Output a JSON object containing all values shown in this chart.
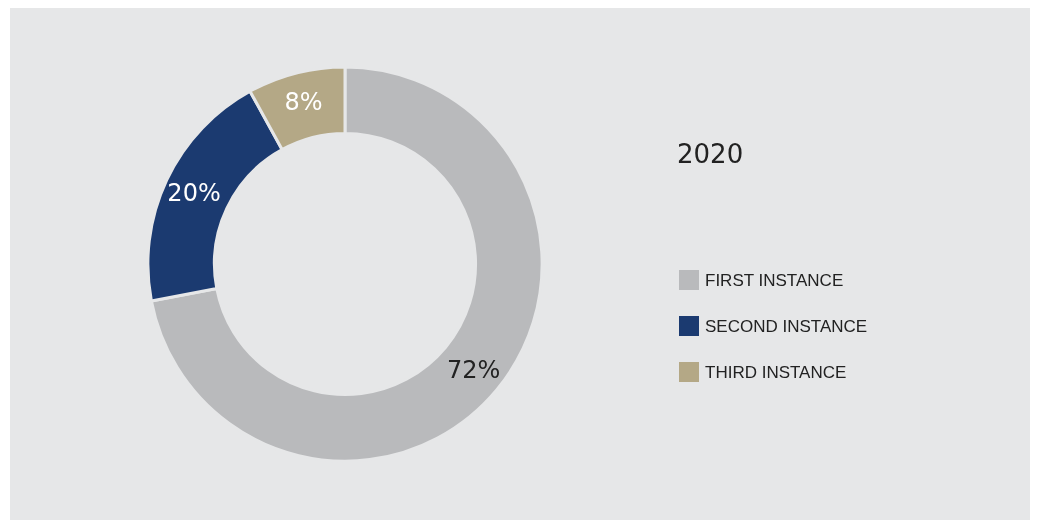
{
  "chart_data": {
    "type": "donut",
    "legend_title": "2020",
    "categories": [
      "FIRST INSTANCE",
      "SECOND INSTANCE",
      "THIRD INSTANCE"
    ],
    "values": [
      72,
      20,
      8
    ],
    "colors": [
      "#b9babc",
      "#1b3a70",
      "#b4a886"
    ],
    "value_labels": [
      "72%",
      "20%",
      "8%"
    ],
    "legend": "right"
  }
}
